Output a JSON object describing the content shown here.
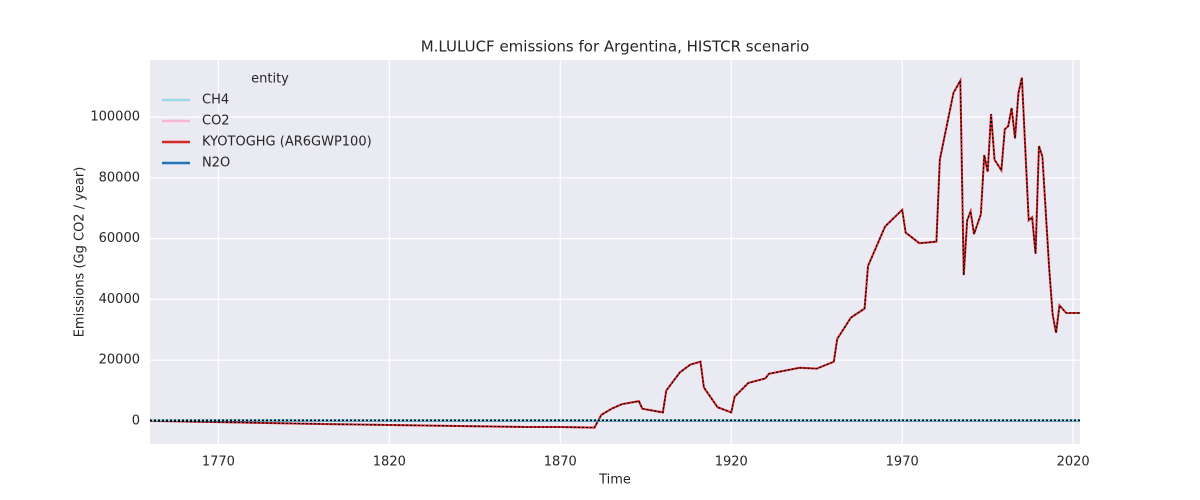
{
  "chart_data": {
    "type": "line",
    "title": "M.LULUCF emissions for Argentina, HISTCR scenario",
    "xlabel": "Time",
    "ylabel": "Emissions (Gg CO2 / year)",
    "legend_title": "entity",
    "legend": "upper left",
    "grid": true,
    "xlim": [
      1750,
      2022
    ],
    "ylim": [
      -7600,
      118800
    ],
    "xticks": [
      1770,
      1820,
      1870,
      1920,
      1970,
      2020
    ],
    "yticks": [
      0,
      20000,
      40000,
      60000,
      80000,
      100000
    ],
    "x": [
      1750,
      1800,
      1860,
      1870,
      1880,
      1882,
      1885,
      1888,
      1893,
      1894,
      1900,
      1901,
      1905,
      1908,
      1911,
      1912,
      1916,
      1920,
      1921,
      1925,
      1930,
      1931,
      1940,
      1945,
      1950,
      1951,
      1955,
      1959,
      1960,
      1965,
      1970,
      1971,
      1975,
      1980,
      1981,
      1985,
      1987,
      1988,
      1989,
      1990,
      1991,
      1993,
      1994,
      1995,
      1996,
      1997,
      1999,
      2000,
      2001,
      2002,
      2003,
      2004,
      2005,
      2007,
      2008,
      2009,
      2010,
      2011,
      2013,
      2014,
      2015,
      2016,
      2018,
      2022
    ],
    "series": [
      {
        "name": "CH4",
        "color": "#9edae5",
        "values": [
          300,
          300,
          300,
          300,
          300,
          300,
          300,
          300,
          300,
          300,
          300,
          300,
          300,
          300,
          300,
          300,
          300,
          300,
          300,
          300,
          300,
          300,
          300,
          300,
          300,
          300,
          300,
          300,
          300,
          300,
          300,
          300,
          300,
          300,
          300,
          300,
          300,
          300,
          300,
          300,
          300,
          300,
          300,
          300,
          300,
          300,
          300,
          300,
          300,
          300,
          300,
          300,
          300,
          300,
          300,
          300,
          300,
          300,
          300,
          300,
          300,
          300,
          300,
          300
        ]
      },
      {
        "name": "CO2",
        "color": "#f7b6d2",
        "values": [
          0,
          -1000,
          -2000,
          -2000,
          -2200,
          2000,
          4000,
          5500,
          6500,
          4000,
          2800,
          10000,
          16000,
          18500,
          19500,
          11000,
          4500,
          2800,
          8000,
          12500,
          14000,
          15500,
          17500,
          17200,
          19500,
          27000,
          34000,
          37000,
          51000,
          64000,
          69500,
          62000,
          58500,
          59000,
          86000,
          108000,
          112000,
          48000,
          66000,
          69000,
          61500,
          68000,
          87500,
          82000,
          101000,
          86000,
          82500,
          96000,
          97000,
          103000,
          93000,
          108000,
          113000,
          66000,
          67000,
          55000,
          90500,
          87000,
          50000,
          35000,
          29000,
          38000,
          35500,
          35500
        ]
      },
      {
        "name": "KYOTOGHG (AR6GWP100)",
        "color": "#d62728",
        "values": [
          0,
          -1000,
          -2000,
          -2000,
          -2200,
          2000,
          4000,
          5500,
          6500,
          4000,
          2800,
          10000,
          16000,
          18500,
          19500,
          11000,
          4500,
          2800,
          8000,
          12500,
          14000,
          15500,
          17500,
          17200,
          19500,
          27000,
          34000,
          37000,
          51000,
          64000,
          69500,
          62000,
          58500,
          59000,
          86000,
          108000,
          112000,
          48000,
          66000,
          69000,
          61500,
          68000,
          87500,
          82000,
          101000,
          86000,
          82500,
          96000,
          97000,
          103000,
          93000,
          108000,
          113000,
          66000,
          67000,
          55000,
          90500,
          87000,
          50000,
          35000,
          29000,
          38000,
          35500,
          35500
        ]
      },
      {
        "name": "N2O",
        "color": "#1f77b4",
        "values": [
          100,
          100,
          100,
          100,
          100,
          100,
          100,
          100,
          100,
          100,
          100,
          100,
          100,
          100,
          100,
          100,
          100,
          100,
          100,
          100,
          100,
          100,
          100,
          100,
          100,
          100,
          100,
          100,
          100,
          100,
          100,
          100,
          100,
          100,
          100,
          100,
          100,
          100,
          100,
          100,
          100,
          100,
          100,
          100,
          100,
          100,
          100,
          100,
          100,
          100,
          100,
          100,
          100,
          100,
          100,
          100,
          100,
          100,
          100,
          100,
          100,
          100,
          100,
          100
        ]
      }
    ]
  }
}
